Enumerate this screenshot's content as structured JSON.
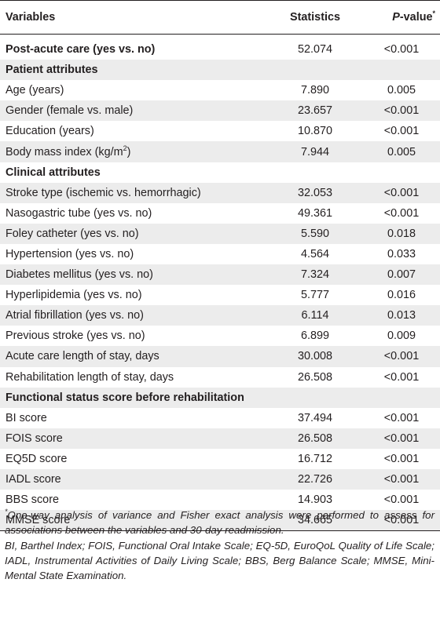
{
  "header": {
    "variables": "Variables",
    "statistics": "Statistics",
    "pvalue_italic": "P",
    "pvalue_rest": "-value",
    "pvalue_sup": "*"
  },
  "rows": [
    {
      "name": "Post-acute care (yes vs. no)",
      "statistic": "52.074",
      "p": "<0.001",
      "section": true
    },
    {
      "name": "Patient attributes",
      "section": true
    },
    {
      "name": "Age (years)",
      "statistic": "7.890",
      "p": "0.005"
    },
    {
      "name": "Gender (female vs. male)",
      "statistic": "23.657",
      "p": "<0.001"
    },
    {
      "name": "Education (years)",
      "statistic": "10.870",
      "p": "<0.001"
    },
    {
      "name": "Body mass index (kg/m",
      "name_sup": "2",
      "name_after": ")",
      "statistic": "7.944",
      "p": "0.005"
    },
    {
      "name": "Clinical attributes",
      "section": true
    },
    {
      "name": "Stroke type (ischemic vs. hemorrhagic)",
      "statistic": "32.053",
      "p": "<0.001"
    },
    {
      "name": "Nasogastric tube (yes vs. no)",
      "statistic": "49.361",
      "p": "<0.001"
    },
    {
      "name": "Foley catheter (yes vs. no)",
      "statistic": "5.590",
      "p": "0.018"
    },
    {
      "name": "Hypertension (yes vs. no)",
      "statistic": "4.564",
      "p": "0.033"
    },
    {
      "name": "Diabetes mellitus (yes vs. no)",
      "statistic": "7.324",
      "p": "0.007"
    },
    {
      "name": "Hyperlipidemia (yes vs. no)",
      "statistic": "5.777",
      "p": "0.016"
    },
    {
      "name": "Atrial fibrillation (yes vs. no)",
      "statistic": "6.114",
      "p": "0.013"
    },
    {
      "name": "Previous stroke (yes vs. no)",
      "statistic": "6.899",
      "p": "0.009"
    },
    {
      "name": "Acute care length of stay, days",
      "statistic": "30.008",
      "p": "<0.001"
    },
    {
      "name": "Rehabilitation length of stay, days",
      "statistic": "26.508",
      "p": "<0.001"
    },
    {
      "name": "Functional status score before rehabilitation",
      "section": true
    },
    {
      "name": "BI score",
      "statistic": "37.494",
      "p": "<0.001"
    },
    {
      "name": "FOIS score",
      "statistic": "26.508",
      "p": "<0.001"
    },
    {
      "name": "EQ5D score",
      "statistic": "16.712",
      "p": "<0.001"
    },
    {
      "name": "IADL score",
      "statistic": "22.726",
      "p": "<0.001"
    },
    {
      "name": "BBS score",
      "statistic": "14.903",
      "p": "<0.001"
    },
    {
      "name": "MMSE score",
      "statistic": "34.665",
      "p": "<0.001"
    }
  ],
  "footnotes": {
    "note1_sup": "*",
    "note1": "One-way analysis of variance and Fisher exact analysis were performed to assess for associations between the variables and 30-day readmission.",
    "note2": "BI, Barthel Index; FOIS, Functional Oral Intake Scale; EQ-5D, EuroQoL Quality of Life Scale; IADL, Instrumental Activities of Daily Living Scale; BBS, Berg Balance Scale; MMSE, Mini-Mental State Examination."
  },
  "colors": {
    "text": "#231f20",
    "row_shade": "#ececec",
    "rule": "#231f20"
  }
}
